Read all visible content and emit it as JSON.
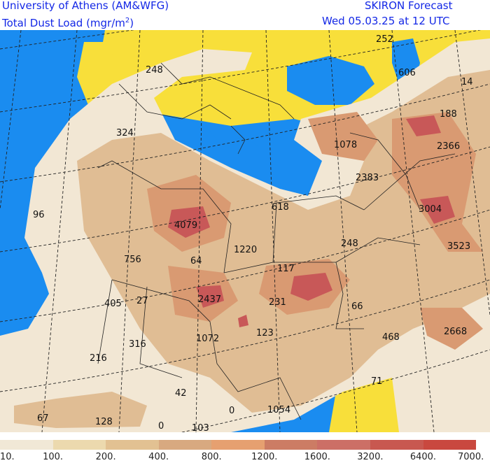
{
  "header": {
    "institution": "University of Athens (AM&WFG)",
    "product": "Total Dust Load (mgr/m",
    "product_sup": "2",
    "product_close": ")",
    "brand": "SKIRON Forecast",
    "valid_time": "Wed 05.03.25 at 12 UTC"
  },
  "values": [
    {
      "id": "v252",
      "text": "252"
    },
    {
      "id": "v606",
      "text": "606"
    },
    {
      "id": "v14",
      "text": "14"
    },
    {
      "id": "v248a",
      "text": "248"
    },
    {
      "id": "v188",
      "text": "188"
    },
    {
      "id": "v324",
      "text": "324"
    },
    {
      "id": "v1078",
      "text": "1078"
    },
    {
      "id": "v2366",
      "text": "2366"
    },
    {
      "id": "v2383",
      "text": "2383"
    },
    {
      "id": "v96",
      "text": "96"
    },
    {
      "id": "v618",
      "text": "618"
    },
    {
      "id": "v4079",
      "text": "4079"
    },
    {
      "id": "v3004",
      "text": "3004"
    },
    {
      "id": "v3523",
      "text": "3523"
    },
    {
      "id": "v1220",
      "text": "1220"
    },
    {
      "id": "v248b",
      "text": "248"
    },
    {
      "id": "v756",
      "text": "756"
    },
    {
      "id": "v64",
      "text": "64"
    },
    {
      "id": "v117",
      "text": "117"
    },
    {
      "id": "v405",
      "text": "405"
    },
    {
      "id": "v27",
      "text": "27"
    },
    {
      "id": "v2437",
      "text": "2437"
    },
    {
      "id": "v231",
      "text": "231"
    },
    {
      "id": "v66",
      "text": "66"
    },
    {
      "id": "v2668",
      "text": "2668"
    },
    {
      "id": "v123",
      "text": "123"
    },
    {
      "id": "v468",
      "text": "468"
    },
    {
      "id": "v1072",
      "text": "1072"
    },
    {
      "id": "v316",
      "text": "316"
    },
    {
      "id": "v216",
      "text": "216"
    },
    {
      "id": "v71",
      "text": "71"
    },
    {
      "id": "v42",
      "text": "42"
    },
    {
      "id": "v0a",
      "text": "0"
    },
    {
      "id": "v1054",
      "text": "1054"
    },
    {
      "id": "v67",
      "text": "67"
    },
    {
      "id": "v128",
      "text": "128"
    },
    {
      "id": "v0b",
      "text": "0"
    },
    {
      "id": "v103",
      "text": "103"
    }
  ],
  "legend": {
    "colors": [
      "#f1e8d6",
      "#ecd9ae",
      "#e2c192",
      "#d8a980",
      "#e6a070",
      "#cc7c64",
      "#cc6f66",
      "#c85850",
      "#c9483f"
    ],
    "labels": [
      "10.",
      "100.",
      "200.",
      "400.",
      "800.",
      "1200.",
      "1600.",
      "3200.",
      "6400.",
      "7000."
    ]
  },
  "map_colors": {
    "sea": "#1a8cf0",
    "land_no_dust": "#f8df3a",
    "dust_low": "#f2e7d4",
    "dust_mid": "#e0bd94",
    "dust_high": "#d99a72",
    "dust_max": "#c85858"
  }
}
